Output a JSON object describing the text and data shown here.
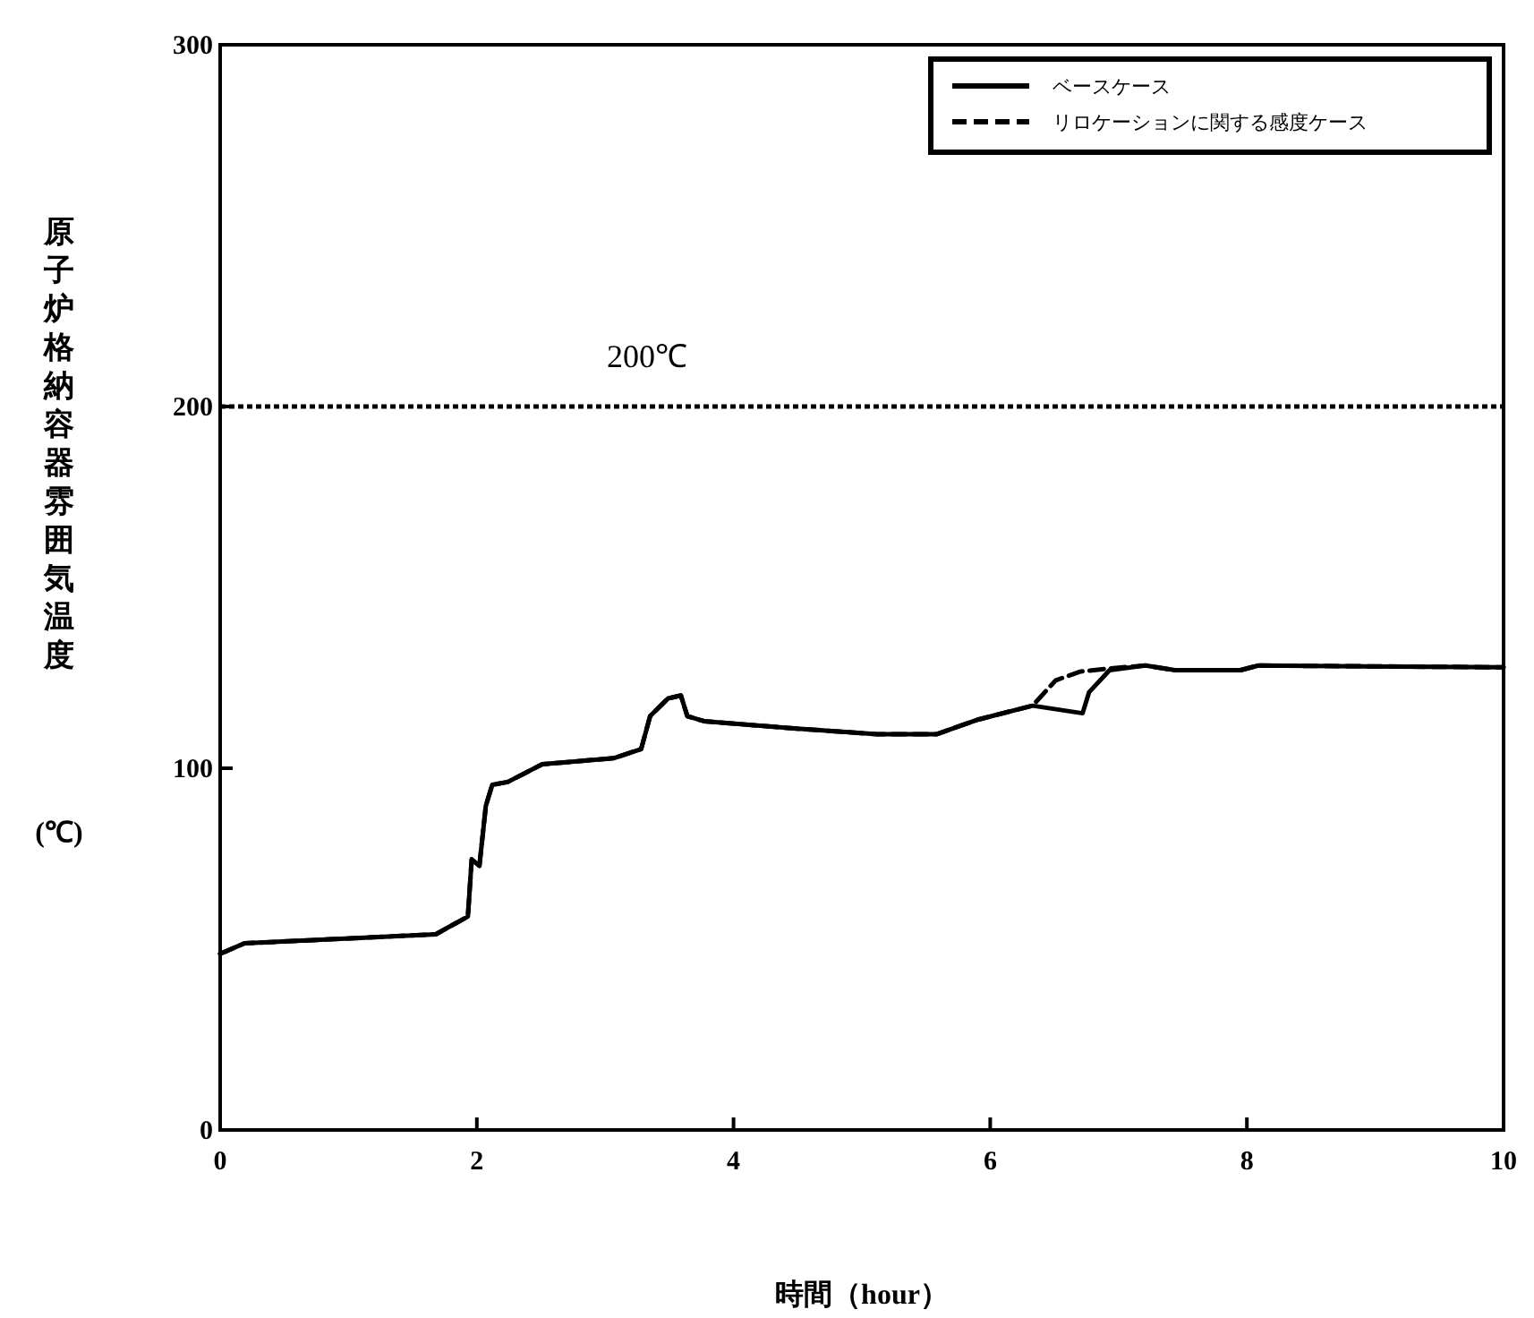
{
  "chart_data": {
    "type": "line",
    "xlabel": "時間（hour）",
    "ylabel": "原子炉格納容器雰囲気温度",
    "annotations": [
      "(℃)"
    ],
    "xlim": [
      0,
      10
    ],
    "ylim": [
      0,
      300
    ],
    "xticks": [
      0,
      2,
      4,
      6,
      8,
      10
    ],
    "yticks": [
      0,
      100,
      200,
      300
    ],
    "grid": false,
    "legend": "top right",
    "marker": "none",
    "ref_lines": [
      {
        "axis": "y",
        "value": 200,
        "label": "200℃",
        "line_style": "dotted",
        "color": "#000000"
      }
    ],
    "series": [
      {
        "name": "ベースケース",
        "color": "#000000",
        "line_style": "solid",
        "x": [
          0,
          0.19,
          1.68,
          1.93,
          1.96,
          2.02,
          2.07,
          2.12,
          2.24,
          2.51,
          3.07,
          3.28,
          3.35,
          3.49,
          3.59,
          3.64,
          3.77,
          4.47,
          5.12,
          5.58,
          5.91,
          6.33,
          6.72,
          6.77,
          6.93,
          7.21,
          7.44,
          7.95,
          8.09,
          10
        ],
        "values": [
          48.7,
          51.6,
          54.1,
          59,
          74.8,
          73,
          89.6,
          95.4,
          96.2,
          101.1,
          102.8,
          105.3,
          114.4,
          119.3,
          120.1,
          114.4,
          113,
          111,
          109.4,
          109.4,
          113.5,
          117.3,
          115.2,
          121,
          127.1,
          128.4,
          127.1,
          127.1,
          128.4,
          127.9
        ]
      },
      {
        "name": "リロケーションに関する感度ケース",
        "color": "#000000",
        "line_style": "dashed",
        "x": [
          0,
          0.19,
          1.68,
          1.93,
          1.96,
          2.02,
          2.07,
          2.12,
          2.24,
          2.51,
          3.07,
          3.28,
          3.35,
          3.49,
          3.59,
          3.64,
          3.77,
          4.47,
          5.12,
          5.58,
          5.91,
          6.33,
          6.51,
          6.7,
          6.93,
          7.21,
          7.44,
          7.95,
          8.09,
          10
        ],
        "values": [
          48.7,
          51.6,
          54.1,
          59,
          74.8,
          73,
          89.6,
          95.4,
          96.2,
          101.1,
          102.8,
          105.3,
          114.4,
          119.3,
          120.1,
          114.4,
          113,
          111,
          109.4,
          109.4,
          113.5,
          117.3,
          124.3,
          126.7,
          127.6,
          128.4,
          127.1,
          127.1,
          128.4,
          127.9
        ]
      }
    ]
  }
}
